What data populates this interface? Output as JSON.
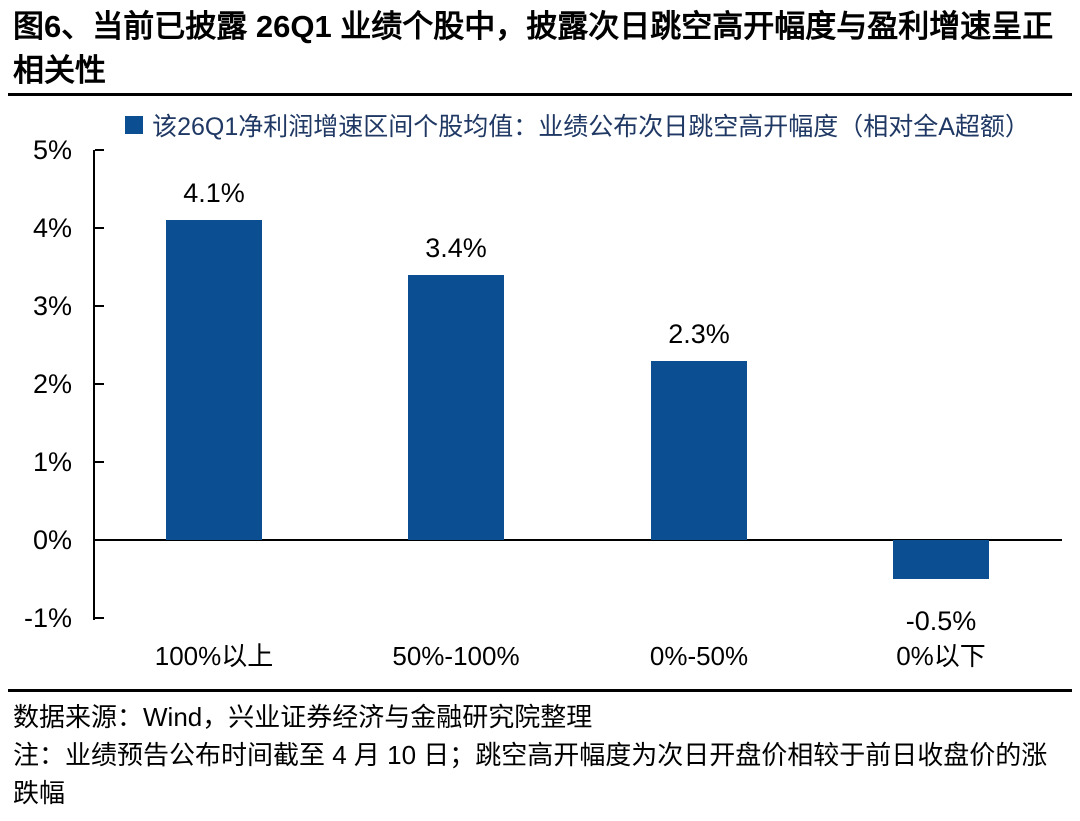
{
  "figure": {
    "title": "图6、当前已披露 26Q1 业绩个股中，披露次日跳空高开幅度与盈利增速呈正相关性",
    "source_line": "数据来源：Wind，兴业证券经济与金融研究院整理",
    "note_line": "注：业绩预告公布时间截至 4 月 10 日；跳空高开幅度为次日开盘价相较于前日收盘价的涨跌幅"
  },
  "colors": {
    "bar": "#0B4E92",
    "legend_text": "#1F3864",
    "axis": "#000000",
    "text": "#000000"
  },
  "chart_data": {
    "type": "bar",
    "title": "",
    "legend": "该26Q1净利润增速区间个股均值：业绩公布次日跳空高开幅度（相对全A超额）",
    "legend_position": "top",
    "grid": false,
    "categories": [
      "100%以上",
      "50%-100%",
      "0%-50%",
      "0%以下"
    ],
    "values": [
      4.1,
      3.4,
      2.3,
      -0.5
    ],
    "value_labels": [
      "4.1%",
      "3.4%",
      "2.3%",
      "-0.5%"
    ],
    "xlabel": "",
    "ylabel": "",
    "ylim": [
      -1,
      5
    ],
    "y_ticks": [
      "5%",
      "4%",
      "3%",
      "2%",
      "1%",
      "0%",
      "-1%"
    ],
    "y_tick_values": [
      5,
      4,
      3,
      2,
      1,
      0,
      -1
    ]
  }
}
